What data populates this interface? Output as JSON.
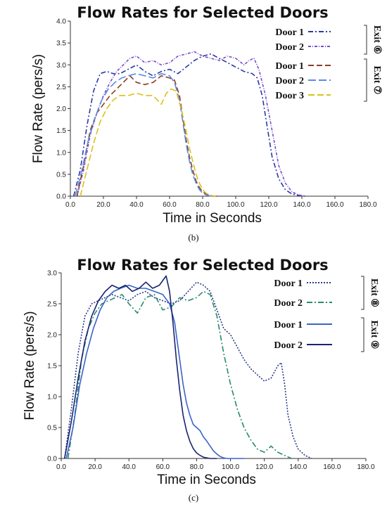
{
  "chart_data": [
    {
      "type": "line",
      "panel": "(b)",
      "title": "Flow Rates for Selected Doors",
      "xlabel": "Time in Seconds",
      "ylabel": "Flow Rate (pers/s)",
      "xlim": [
        0,
        180
      ],
      "ylim": [
        0,
        4
      ],
      "xticks": [
        "0.0",
        "20.0",
        "40.0",
        "60.0",
        "80.0",
        "100.0",
        "120.0",
        "140.0",
        "160.0",
        "180.0"
      ],
      "yticks": [
        "0.0",
        "0.5",
        "1.0",
        "1.5",
        "2.0",
        "2.5",
        "3.0",
        "3.5",
        "4.0"
      ],
      "legend_groups": [
        {
          "label": "Exit ⑥",
          "entries": [
            0,
            1
          ]
        },
        {
          "label": "Exit ⑦",
          "entries": [
            2,
            3,
            4
          ]
        }
      ],
      "series": [
        {
          "name": "Door 1",
          "color": "#2a3aa8",
          "dash": "7,3,2,3",
          "x": [
            2,
            6,
            10,
            14,
            18,
            22,
            26,
            30,
            35,
            40,
            45,
            50,
            55,
            60,
            65,
            70,
            75,
            80,
            85,
            90,
            95,
            100,
            105,
            110,
            113,
            116,
            119,
            122,
            126,
            130,
            134,
            138,
            142
          ],
          "y": [
            0,
            0.6,
            1.6,
            2.4,
            2.8,
            2.85,
            2.8,
            2.8,
            2.9,
            3.0,
            2.85,
            2.75,
            2.85,
            2.9,
            2.8,
            2.95,
            3.1,
            3.2,
            3.25,
            3.15,
            3.05,
            2.95,
            2.85,
            2.8,
            2.7,
            2.3,
            1.6,
            0.9,
            0.4,
            0.15,
            0.05,
            0.02,
            0
          ]
        },
        {
          "name": "Door 2",
          "color": "#7a4cc8",
          "dash": "4,2,1,2",
          "x": [
            4,
            8,
            12,
            16,
            20,
            24,
            28,
            32,
            36,
            40,
            45,
            50,
            55,
            60,
            65,
            70,
            75,
            80,
            85,
            90,
            95,
            100,
            105,
            108,
            111,
            114,
            118,
            122,
            126,
            130,
            134,
            138,
            142
          ],
          "y": [
            0,
            0.6,
            1.4,
            1.9,
            2.3,
            2.6,
            2.85,
            3.0,
            3.15,
            3.2,
            3.05,
            3.1,
            3.0,
            3.05,
            3.2,
            3.25,
            3.3,
            3.2,
            3.15,
            3.1,
            3.2,
            3.15,
            3.0,
            3.1,
            3.15,
            2.9,
            2.3,
            1.5,
            0.7,
            0.3,
            0.1,
            0.03,
            0
          ]
        },
        {
          "name": "Door 1",
          "color": "#8a3e24",
          "dash": "8,4",
          "x": [
            4,
            8,
            12,
            16,
            20,
            24,
            28,
            32,
            36,
            40,
            45,
            50,
            55,
            60,
            63,
            66,
            68,
            70,
            72,
            74,
            76,
            78,
            80,
            82,
            84,
            86,
            90
          ],
          "y": [
            0,
            0.7,
            1.5,
            1.9,
            2.1,
            2.3,
            2.45,
            2.6,
            2.75,
            2.6,
            2.55,
            2.6,
            2.75,
            2.7,
            2.65,
            2.3,
            1.8,
            1.3,
            0.9,
            0.6,
            0.35,
            0.2,
            0.1,
            0.05,
            0.02,
            0,
            0
          ]
        },
        {
          "name": "Door 2",
          "color": "#5a8ae0",
          "dash": "11,4",
          "x": [
            3,
            7,
            11,
            15,
            19,
            23,
            27,
            31,
            35,
            40,
            45,
            50,
            55,
            60,
            63,
            66,
            68,
            70,
            72,
            74,
            76,
            78,
            80,
            82,
            84,
            88
          ],
          "y": [
            0,
            0.6,
            1.3,
            1.8,
            2.2,
            2.45,
            2.6,
            2.7,
            2.75,
            2.8,
            2.75,
            2.7,
            2.8,
            2.75,
            2.6,
            2.2,
            1.7,
            1.2,
            0.8,
            0.5,
            0.3,
            0.15,
            0.07,
            0.03,
            0.01,
            0
          ]
        },
        {
          "name": "Door 3",
          "color": "#d8c21a",
          "dash": "9,4",
          "x": [
            6,
            10,
            14,
            18,
            22,
            26,
            30,
            35,
            40,
            45,
            50,
            55,
            58,
            61,
            64,
            67,
            70,
            72,
            74,
            76,
            78,
            80,
            82,
            84,
            86,
            88
          ],
          "y": [
            0,
            0.6,
            1.2,
            1.7,
            2.0,
            2.2,
            2.3,
            2.3,
            2.35,
            2.3,
            2.3,
            2.1,
            2.35,
            2.45,
            2.4,
            2.0,
            1.5,
            1.1,
            0.8,
            0.5,
            0.3,
            0.15,
            0.07,
            0.03,
            0.01,
            0
          ]
        }
      ]
    },
    {
      "type": "line",
      "panel": "(c)",
      "title": "Flow Rates for Selected Doors",
      "xlabel": "Time in Seconds",
      "ylabel": "Flow Rate (pers/s)",
      "xlim": [
        0,
        180
      ],
      "ylim": [
        0,
        3
      ],
      "xticks": [
        "0.0",
        "20.0",
        "40.0",
        "60.0",
        "80.0",
        "100.0",
        "120.0",
        "140.0",
        "160.0",
        "180.0"
      ],
      "yticks": [
        "0.0",
        "0.5",
        "1.0",
        "1.5",
        "2.0",
        "2.5",
        "3.0"
      ],
      "legend_groups": [
        {
          "label": "Exit ⑧",
          "entries": [
            0,
            1
          ]
        },
        {
          "label": "Exit ⑨",
          "entries": [
            2,
            3
          ]
        }
      ],
      "series": [
        {
          "name": "Door 1",
          "color": "#2c3a8c",
          "dash": "2,2",
          "x": [
            2,
            6,
            10,
            14,
            18,
            22,
            26,
            30,
            35,
            40,
            45,
            50,
            55,
            60,
            65,
            70,
            75,
            80,
            84,
            88,
            92,
            96,
            100,
            104,
            108,
            112,
            116,
            120,
            124,
            128,
            130,
            132,
            134,
            137,
            140,
            144,
            148
          ],
          "y": [
            0,
            0.8,
            1.7,
            2.3,
            2.5,
            2.55,
            2.6,
            2.65,
            2.6,
            2.55,
            2.65,
            2.7,
            2.6,
            2.55,
            2.5,
            2.55,
            2.7,
            2.85,
            2.8,
            2.7,
            2.4,
            2.1,
            2.0,
            1.8,
            1.6,
            1.45,
            1.35,
            1.25,
            1.3,
            1.5,
            1.55,
            1.2,
            0.7,
            0.35,
            0.15,
            0.05,
            0
          ]
        },
        {
          "name": "Door 2",
          "color": "#2a8a6a",
          "dash": "8,3,2,3",
          "x": [
            4,
            8,
            12,
            16,
            20,
            24,
            28,
            32,
            36,
            40,
            45,
            50,
            55,
            60,
            65,
            70,
            75,
            80,
            84,
            88,
            92,
            96,
            100,
            104,
            108,
            112,
            116,
            120,
            124,
            128,
            132,
            136
          ],
          "y": [
            0,
            0.7,
            1.6,
            2.1,
            2.35,
            2.5,
            2.55,
            2.6,
            2.65,
            2.5,
            2.35,
            2.6,
            2.65,
            2.4,
            2.45,
            2.6,
            2.55,
            2.6,
            2.7,
            2.65,
            2.3,
            1.7,
            1.2,
            0.8,
            0.5,
            0.3,
            0.15,
            0.1,
            0.2,
            0.1,
            0.05,
            0
          ]
        },
        {
          "name": "Door 1",
          "color": "#3a63c8",
          "dash": "",
          "x": [
            3,
            7,
            11,
            15,
            19,
            23,
            27,
            31,
            35,
            40,
            45,
            50,
            55,
            60,
            64,
            67,
            70,
            72,
            74,
            76,
            78,
            80,
            82,
            84,
            86,
            88,
            90,
            92,
            94,
            96,
            98,
            100,
            104,
            108
          ],
          "y": [
            0,
            0.5,
            1.2,
            1.7,
            2.1,
            2.4,
            2.6,
            2.7,
            2.75,
            2.8,
            2.75,
            2.75,
            2.7,
            2.65,
            2.5,
            2.2,
            1.6,
            1.2,
            0.9,
            0.7,
            0.55,
            0.5,
            0.45,
            0.35,
            0.28,
            0.2,
            0.12,
            0.07,
            0.03,
            0.01,
            0,
            0,
            0,
            0
          ]
        },
        {
          "name": "Door 2",
          "color": "#1a2470",
          "dash": "",
          "x": [
            2,
            6,
            10,
            14,
            18,
            22,
            26,
            30,
            34,
            38,
            42,
            46,
            50,
            54,
            58,
            62,
            64,
            66,
            68,
            70,
            72,
            74,
            76,
            78,
            80,
            82,
            84,
            86,
            88,
            92
          ],
          "y": [
            0,
            0.6,
            1.3,
            1.9,
            2.3,
            2.55,
            2.7,
            2.8,
            2.75,
            2.8,
            2.7,
            2.75,
            2.85,
            2.75,
            2.8,
            2.95,
            2.7,
            2.2,
            1.6,
            1.1,
            0.7,
            0.45,
            0.28,
            0.16,
            0.09,
            0.05,
            0.02,
            0.01,
            0,
            0
          ]
        }
      ]
    }
  ]
}
